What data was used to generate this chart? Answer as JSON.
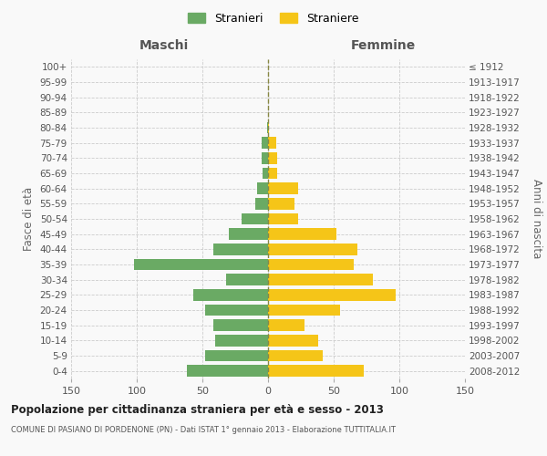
{
  "age_groups": [
    "100+",
    "95-99",
    "90-94",
    "85-89",
    "80-84",
    "75-79",
    "70-74",
    "65-69",
    "60-64",
    "55-59",
    "50-54",
    "45-49",
    "40-44",
    "35-39",
    "30-34",
    "25-29",
    "20-24",
    "15-19",
    "10-14",
    "5-9",
    "0-4"
  ],
  "birth_years": [
    "≤ 1912",
    "1913-1917",
    "1918-1922",
    "1923-1927",
    "1928-1932",
    "1933-1937",
    "1938-1942",
    "1943-1947",
    "1948-1952",
    "1953-1957",
    "1958-1962",
    "1963-1967",
    "1968-1972",
    "1973-1977",
    "1978-1982",
    "1983-1987",
    "1988-1992",
    "1993-1997",
    "1998-2002",
    "2003-2007",
    "2008-2012"
  ],
  "maschi": [
    0,
    0,
    0,
    0,
    1,
    5,
    5,
    4,
    8,
    10,
    20,
    30,
    42,
    102,
    32,
    57,
    48,
    42,
    40,
    48,
    62
  ],
  "femmine": [
    0,
    0,
    0,
    0,
    1,
    6,
    7,
    7,
    23,
    20,
    23,
    52,
    68,
    65,
    80,
    97,
    55,
    28,
    38,
    42,
    73
  ],
  "maschi_color": "#6aaa64",
  "femmine_color": "#f5c518",
  "title": "Popolazione per cittadinanza straniera per età e sesso - 2013",
  "subtitle": "COMUNE DI PASIANO DI PORDENONE (PN) - Dati ISTAT 1° gennaio 2013 - Elaborazione TUTTITALIA.IT",
  "header_left": "Maschi",
  "header_right": "Femmine",
  "ylabel_left": "Fasce di età",
  "ylabel_right": "Anni di nascita",
  "legend_maschi": "Stranieri",
  "legend_femmine": "Straniere",
  "xlim": 150,
  "background_color": "#f9f9f9",
  "grid_color": "#cccccc"
}
